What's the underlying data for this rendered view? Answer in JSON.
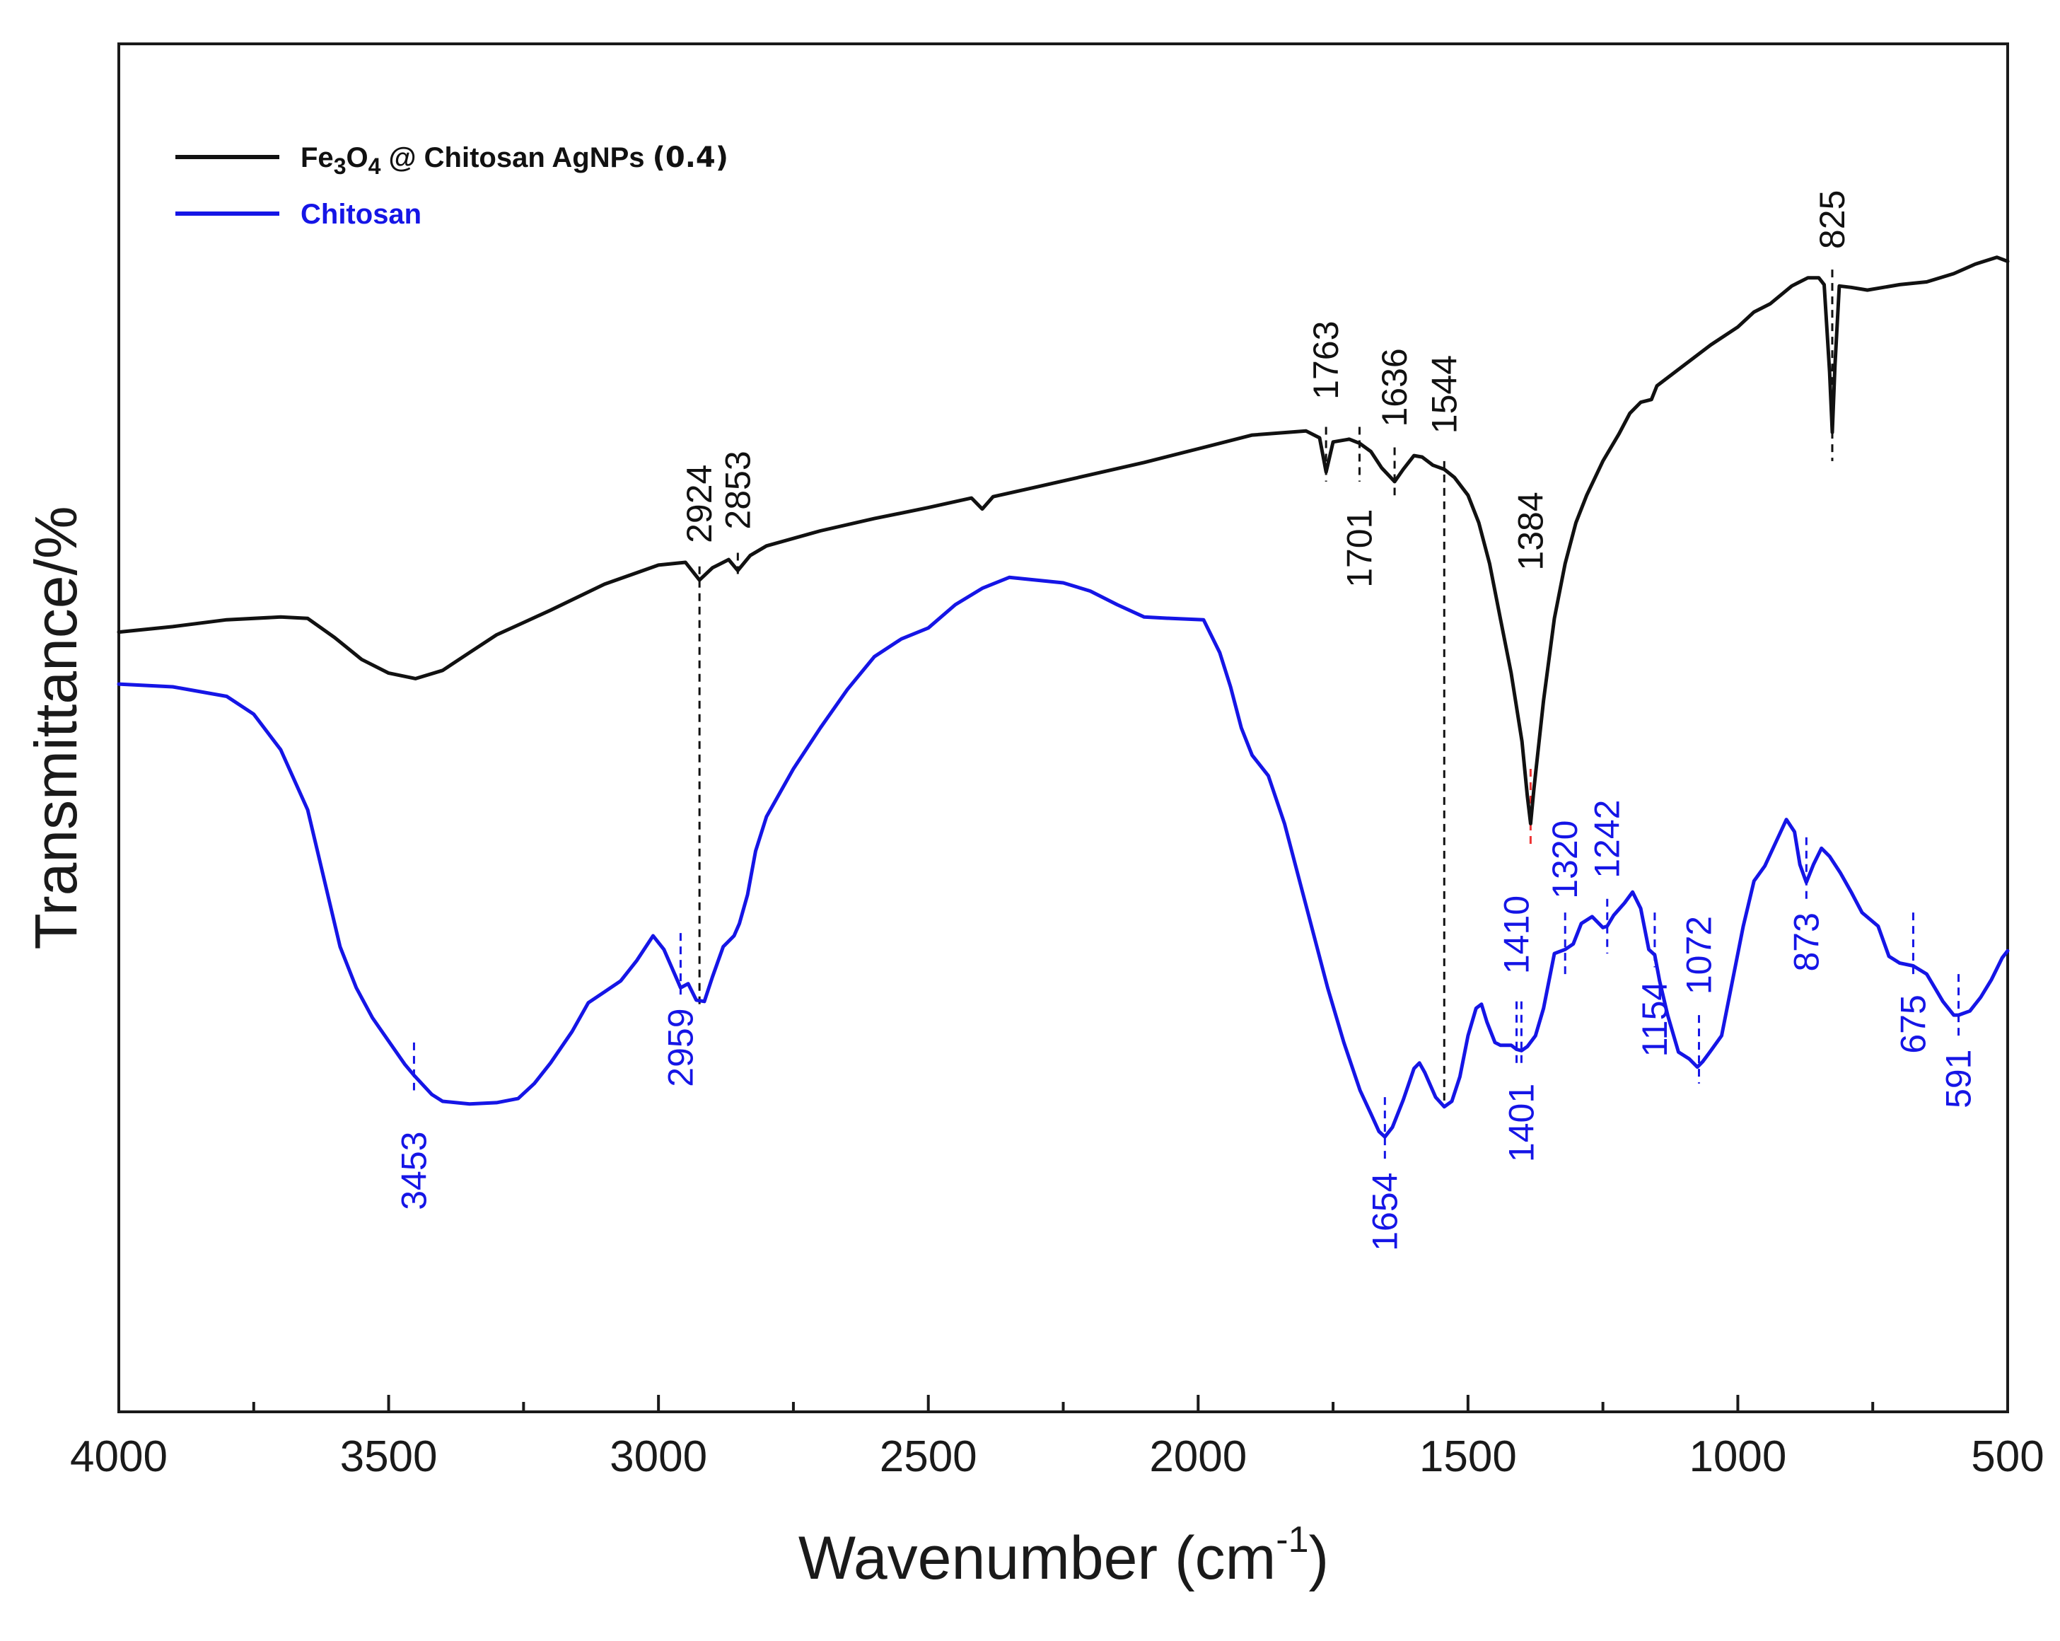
{
  "chart_data": {
    "type": "line",
    "title": "",
    "xlabel": "Wavenumber (cm",
    "xlabel_sup": "-1",
    "xlabel_close": ")",
    "ylabel": "Transmittance/%",
    "xlim": [
      4000,
      500
    ],
    "ylim": [
      0,
      100
    ],
    "x_ticks": [
      4000,
      3500,
      3000,
      2500,
      2000,
      1500,
      1000,
      500
    ],
    "x_tick_labels": [
      "4000",
      "3500",
      "3000",
      "2500",
      "2000",
      "1500",
      "1000",
      "500"
    ],
    "colors": {
      "black": "#111111",
      "blue": "#1515e6",
      "red_marker": "#ee3333"
    },
    "series": [
      {
        "name": "Fe3O4 @ Chitosan AgNPs (0.4)",
        "legend_parts": [
          "Fe",
          "3",
          "O",
          "4",
          " @ Chitosan AgNPs ",
          "(0.4)"
        ],
        "color": "#111111",
        "points": [
          [
            4000,
            57.0
          ],
          [
            3900,
            57.4
          ],
          [
            3800,
            57.9
          ],
          [
            3700,
            58.1
          ],
          [
            3650,
            58.0
          ],
          [
            3600,
            56.6
          ],
          [
            3550,
            55.0
          ],
          [
            3500,
            54.0
          ],
          [
            3450,
            53.6
          ],
          [
            3400,
            54.2
          ],
          [
            3350,
            55.5
          ],
          [
            3300,
            56.8
          ],
          [
            3250,
            57.7
          ],
          [
            3200,
            58.6
          ],
          [
            3100,
            60.5
          ],
          [
            3000,
            61.9
          ],
          [
            2950,
            62.1
          ],
          [
            2924,
            60.8
          ],
          [
            2900,
            61.7
          ],
          [
            2870,
            62.3
          ],
          [
            2853,
            61.5
          ],
          [
            2830,
            62.6
          ],
          [
            2800,
            63.3
          ],
          [
            2700,
            64.4
          ],
          [
            2600,
            65.3
          ],
          [
            2500,
            66.1
          ],
          [
            2420,
            66.8
          ],
          [
            2400,
            66.0
          ],
          [
            2380,
            66.9
          ],
          [
            2300,
            67.6
          ],
          [
            2200,
            68.5
          ],
          [
            2100,
            69.4
          ],
          [
            2000,
            70.4
          ],
          [
            1900,
            71.4
          ],
          [
            1800,
            71.7
          ],
          [
            1775,
            71.2
          ],
          [
            1763,
            68.7
          ],
          [
            1750,
            70.9
          ],
          [
            1720,
            71.1
          ],
          [
            1701,
            70.8
          ],
          [
            1680,
            70.2
          ],
          [
            1660,
            69.0
          ],
          [
            1636,
            68.0
          ],
          [
            1620,
            68.9
          ],
          [
            1600,
            69.9
          ],
          [
            1585,
            69.8
          ],
          [
            1565,
            69.2
          ],
          [
            1544,
            68.9
          ],
          [
            1525,
            68.3
          ],
          [
            1500,
            67.0
          ],
          [
            1480,
            65.0
          ],
          [
            1460,
            62.0
          ],
          [
            1440,
            58.0
          ],
          [
            1420,
            54.0
          ],
          [
            1400,
            49.0
          ],
          [
            1390,
            45.0
          ],
          [
            1384,
            43.0
          ],
          [
            1378,
            45.5
          ],
          [
            1360,
            52.0
          ],
          [
            1340,
            58.0
          ],
          [
            1320,
            62.0
          ],
          [
            1300,
            65.0
          ],
          [
            1280,
            67.0
          ],
          [
            1250,
            69.5
          ],
          [
            1220,
            71.5
          ],
          [
            1200,
            73.0
          ],
          [
            1180,
            73.8
          ],
          [
            1160,
            74.0
          ],
          [
            1150,
            75.0
          ],
          [
            1100,
            76.5
          ],
          [
            1050,
            78.0
          ],
          [
            1000,
            79.3
          ],
          [
            970,
            80.4
          ],
          [
            940,
            81.0
          ],
          [
            900,
            82.3
          ],
          [
            870,
            82.9
          ],
          [
            850,
            82.9
          ],
          [
            840,
            82.4
          ],
          [
            830,
            76.0
          ],
          [
            825,
            71.6
          ],
          [
            820,
            76.5
          ],
          [
            812,
            82.3
          ],
          [
            790,
            82.2
          ],
          [
            760,
            82.0
          ],
          [
            700,
            82.4
          ],
          [
            650,
            82.6
          ],
          [
            600,
            83.2
          ],
          [
            560,
            83.9
          ],
          [
            520,
            84.4
          ],
          [
            500,
            84.1
          ]
        ]
      },
      {
        "name": "Chitosan",
        "color": "#1515e6",
        "points": [
          [
            4000,
            53.2
          ],
          [
            3900,
            53.0
          ],
          [
            3800,
            52.3
          ],
          [
            3750,
            51.0
          ],
          [
            3700,
            48.4
          ],
          [
            3650,
            44.0
          ],
          [
            3620,
            39.0
          ],
          [
            3590,
            34.0
          ],
          [
            3560,
            31.0
          ],
          [
            3530,
            28.8
          ],
          [
            3500,
            27.1
          ],
          [
            3470,
            25.4
          ],
          [
            3453,
            24.6
          ],
          [
            3420,
            23.2
          ],
          [
            3400,
            22.7
          ],
          [
            3350,
            22.5
          ],
          [
            3300,
            22.6
          ],
          [
            3260,
            22.9
          ],
          [
            3230,
            24.0
          ],
          [
            3200,
            25.5
          ],
          [
            3160,
            27.8
          ],
          [
            3130,
            29.9
          ],
          [
            3100,
            30.7
          ],
          [
            3070,
            31.5
          ],
          [
            3040,
            33.0
          ],
          [
            3010,
            34.8
          ],
          [
            2990,
            33.8
          ],
          [
            2970,
            32.0
          ],
          [
            2959,
            31.0
          ],
          [
            2945,
            31.3
          ],
          [
            2930,
            30.1
          ],
          [
            2915,
            30.0
          ],
          [
            2900,
            31.8
          ],
          [
            2880,
            34.0
          ],
          [
            2860,
            34.8
          ],
          [
            2850,
            35.7
          ],
          [
            2835,
            37.8
          ],
          [
            2820,
            41.0
          ],
          [
            2800,
            43.5
          ],
          [
            2750,
            47.0
          ],
          [
            2700,
            50.0
          ],
          [
            2650,
            52.8
          ],
          [
            2600,
            55.2
          ],
          [
            2550,
            56.5
          ],
          [
            2500,
            57.3
          ],
          [
            2450,
            59.0
          ],
          [
            2400,
            60.2
          ],
          [
            2350,
            61.0
          ],
          [
            2300,
            60.8
          ],
          [
            2250,
            60.6
          ],
          [
            2200,
            60.0
          ],
          [
            2150,
            59.0
          ],
          [
            2100,
            58.1
          ],
          [
            2050,
            58.0
          ],
          [
            1990,
            57.9
          ],
          [
            1960,
            55.5
          ],
          [
            1940,
            53.0
          ],
          [
            1920,
            50.0
          ],
          [
            1900,
            48.0
          ],
          [
            1870,
            46.5
          ],
          [
            1840,
            43.0
          ],
          [
            1800,
            37.0
          ],
          [
            1760,
            31.0
          ],
          [
            1730,
            27.0
          ],
          [
            1700,
            23.5
          ],
          [
            1680,
            21.8
          ],
          [
            1665,
            20.5
          ],
          [
            1654,
            20.1
          ],
          [
            1640,
            20.8
          ],
          [
            1620,
            22.8
          ],
          [
            1600,
            25.1
          ],
          [
            1590,
            25.5
          ],
          [
            1580,
            24.8
          ],
          [
            1560,
            23.0
          ],
          [
            1544,
            22.3
          ],
          [
            1530,
            22.7
          ],
          [
            1515,
            24.5
          ],
          [
            1500,
            27.5
          ],
          [
            1485,
            29.5
          ],
          [
            1475,
            29.8
          ],
          [
            1465,
            28.5
          ],
          [
            1450,
            27.0
          ],
          [
            1440,
            26.8
          ],
          [
            1420,
            26.8
          ],
          [
            1410,
            26.5
          ],
          [
            1401,
            26.4
          ],
          [
            1390,
            26.7
          ],
          [
            1375,
            27.5
          ],
          [
            1360,
            29.5
          ],
          [
            1340,
            33.5
          ],
          [
            1320,
            33.8
          ],
          [
            1305,
            34.2
          ],
          [
            1290,
            35.7
          ],
          [
            1270,
            36.2
          ],
          [
            1250,
            35.4
          ],
          [
            1242,
            35.5
          ],
          [
            1230,
            36.3
          ],
          [
            1210,
            37.2
          ],
          [
            1195,
            38.0
          ],
          [
            1180,
            36.8
          ],
          [
            1165,
            33.8
          ],
          [
            1154,
            33.4
          ],
          [
            1145,
            31.5
          ],
          [
            1130,
            29.0
          ],
          [
            1110,
            26.3
          ],
          [
            1090,
            25.8
          ],
          [
            1075,
            25.2
          ],
          [
            1065,
            25.6
          ],
          [
            1050,
            26.4
          ],
          [
            1030,
            27.5
          ],
          [
            1010,
            31.5
          ],
          [
            990,
            35.5
          ],
          [
            970,
            38.8
          ],
          [
            950,
            39.9
          ],
          [
            930,
            41.6
          ],
          [
            910,
            43.3
          ],
          [
            895,
            42.4
          ],
          [
            885,
            40.0
          ],
          [
            873,
            38.7
          ],
          [
            860,
            40.0
          ],
          [
            845,
            41.2
          ],
          [
            830,
            40.6
          ],
          [
            810,
            39.4
          ],
          [
            790,
            38.0
          ],
          [
            770,
            36.5
          ],
          [
            740,
            35.5
          ],
          [
            720,
            33.3
          ],
          [
            700,
            32.8
          ],
          [
            675,
            32.6
          ],
          [
            650,
            32.0
          ],
          [
            620,
            30.0
          ],
          [
            600,
            29.0
          ],
          [
            591,
            29.0
          ],
          [
            570,
            29.3
          ],
          [
            550,
            30.3
          ],
          [
            530,
            31.6
          ],
          [
            510,
            33.2
          ],
          [
            500,
            33.7
          ]
        ]
      }
    ],
    "peak_annotations": [
      {
        "label": "2924",
        "x": 2924,
        "series": "black",
        "line_from": 61.8,
        "line_to": 29.8,
        "text_anchor_value": 63.5,
        "text_side": "above",
        "color": "#111111"
      },
      {
        "label": "2853",
        "x": 2853,
        "series": "black",
        "line_from": 62.8,
        "line_to": 61.0,
        "text_anchor_value": 64.5,
        "text_side": "above",
        "color": "#111111"
      },
      {
        "label": "1763",
        "x": 1763,
        "series": "black",
        "line_from": 72.0,
        "line_to": 68.0,
        "text_anchor_value": 74.0,
        "text_side": "above",
        "color": "#111111"
      },
      {
        "label": "1701",
        "x": 1701,
        "series": "black",
        "line_from": 72.0,
        "line_to": 68.0,
        "text_anchor_value": 66.0,
        "text_side": "below",
        "color": "#111111"
      },
      {
        "label": "1636",
        "x": 1636,
        "series": "black",
        "line_from": 70.5,
        "line_to": 67.0,
        "text_anchor_value": 72.0,
        "text_side": "above",
        "color": "#111111"
      },
      {
        "label": "1544",
        "x": 1544,
        "series": "black",
        "line_from": 69.5,
        "line_to": 22.3,
        "text_anchor_value": 71.5,
        "text_side": "above",
        "color": "#111111"
      },
      {
        "label": "1384",
        "x": 1384,
        "series": "black",
        "line_from": 47.0,
        "line_to": 41.5,
        "text_anchor_value": 61.5,
        "text_side": "above",
        "color": "#ee3333"
      },
      {
        "label": "825",
        "x": 825,
        "series": "black",
        "line_from": 83.5,
        "line_to": 69.5,
        "text_anchor_value": 85.0,
        "text_side": "above",
        "color": "#111111"
      },
      {
        "label": "3453",
        "x": 3453,
        "series": "blue",
        "line_from": 27.0,
        "line_to": 23.5,
        "text_anchor_value": 20.5,
        "text_side": "below",
        "color": "#1515e6"
      },
      {
        "label": "2959",
        "x": 2959,
        "series": "blue",
        "line_from": 35.0,
        "line_to": 30.5,
        "text_anchor_value": 29.5,
        "text_side": "below",
        "color": "#1515e6"
      },
      {
        "label": "1654",
        "x": 1654,
        "series": "blue",
        "line_from": 23.0,
        "line_to": 18.5,
        "text_anchor_value": 17.5,
        "text_side": "below",
        "color": "#1515e6"
      },
      {
        "label": "1410",
        "x": 1410,
        "series": "blue",
        "line_from": 30.0,
        "line_to": 25.5,
        "text_anchor_value": 32.0,
        "text_side": "above",
        "color": "#1515e6"
      },
      {
        "label": "1401",
        "x": 1401,
        "series": "blue",
        "line_from": 30.0,
        "line_to": 25.5,
        "text_anchor_value": 24.0,
        "text_side": "below",
        "color": "#1515e6"
      },
      {
        "label": "1320",
        "x": 1320,
        "series": "blue",
        "line_from": 36.5,
        "line_to": 32.0,
        "text_anchor_value": 37.5,
        "text_side": "above",
        "color": "#1515e6"
      },
      {
        "label": "1242",
        "x": 1242,
        "series": "blue",
        "line_from": 37.5,
        "line_to": 33.5,
        "text_anchor_value": 39.0,
        "text_side": "above",
        "color": "#1515e6"
      },
      {
        "label": "1154",
        "x": 1154,
        "series": "blue",
        "line_from": 36.5,
        "line_to": 32.5,
        "text_anchor_value": 31.5,
        "text_side": "below",
        "color": "#1515e6"
      },
      {
        "label": "1072",
        "x": 1072,
        "series": "blue",
        "line_from": 29.0,
        "line_to": 24.0,
        "text_anchor_value": 30.5,
        "text_side": "above",
        "color": "#1515e6"
      },
      {
        "label": "873",
        "x": 873,
        "series": "blue",
        "line_from": 42.0,
        "line_to": 37.5,
        "text_anchor_value": 36.5,
        "text_side": "below",
        "color": "#1515e6"
      },
      {
        "label": "675",
        "x": 675,
        "series": "blue",
        "line_from": 36.5,
        "line_to": 32.0,
        "text_anchor_value": 30.5,
        "text_side": "below",
        "color": "#1515e6"
      },
      {
        "label": "591",
        "x": 591,
        "series": "blue",
        "line_from": 32.0,
        "line_to": 27.5,
        "text_anchor_value": 26.5,
        "text_side": "below",
        "color": "#1515e6"
      }
    ]
  }
}
